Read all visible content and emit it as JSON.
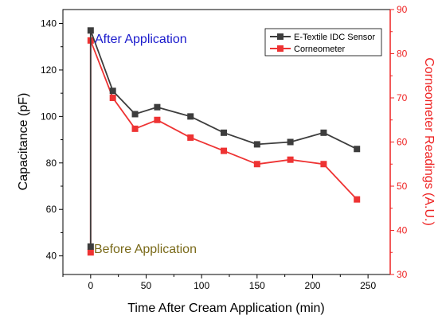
{
  "chart_data": {
    "type": "line",
    "x": [
      0,
      20,
      40,
      60,
      90,
      120,
      150,
      180,
      210,
      240
    ],
    "xlabel": "Time After Cream Application (min)",
    "xlim": [
      -25,
      270
    ],
    "xticks": [
      0,
      50,
      100,
      150,
      200,
      250
    ],
    "y_left": {
      "label": "Capacitance (pF)",
      "lim": [
        32,
        146
      ],
      "ticks": [
        40,
        60,
        80,
        100,
        120,
        140
      ],
      "color": "#1a1a1a"
    },
    "y_right": {
      "label": "Corneometer Readings (A.U.)",
      "lim": [
        30,
        90
      ],
      "ticks": [
        30,
        40,
        50,
        60,
        70,
        80,
        90
      ],
      "color": "#ee2222"
    },
    "series": [
      {
        "name": "E-Textile IDC Sensor",
        "axis": "left",
        "color": "#3d3d3d",
        "before_application": 44,
        "values": [
          137,
          111,
          101,
          104,
          100,
          93,
          88,
          89,
          93,
          86
        ]
      },
      {
        "name": "Corneometer",
        "axis": "right",
        "color": "#ee3333",
        "before_application": 35,
        "values": [
          83,
          70,
          63,
          65,
          61,
          58,
          55,
          56,
          55,
          47
        ]
      }
    ],
    "annotations": {
      "after": {
        "text": "After Application",
        "color": "#1a1acc"
      },
      "before": {
        "text": "Before Application",
        "color": "#7a6a1a"
      }
    },
    "legend": {
      "position": "top-right"
    }
  }
}
